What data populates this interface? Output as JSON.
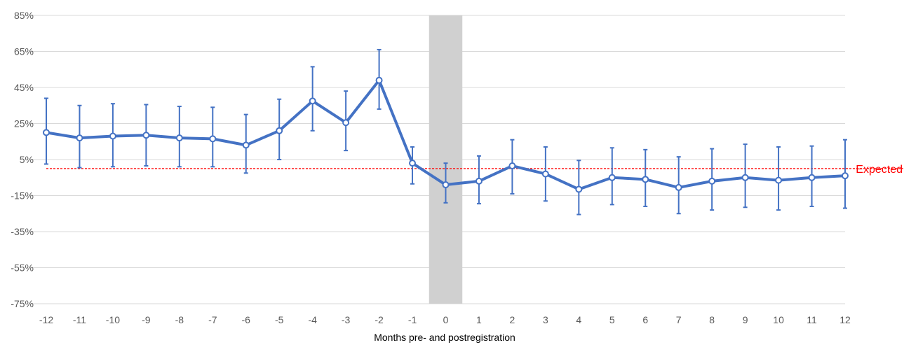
{
  "chart_data": {
    "type": "line",
    "title": "",
    "xlabel": "Months pre- and postregistration",
    "ylabel": "",
    "x": [
      -12,
      -11,
      -10,
      -9,
      -8,
      -7,
      -6,
      -5,
      -4,
      -3,
      -2,
      -1,
      0,
      1,
      2,
      3,
      4,
      5,
      6,
      7,
      8,
      9,
      10,
      11,
      12
    ],
    "x_tick_labels": [
      "-12",
      "-11",
      "-10",
      "-9",
      "-8",
      "-7",
      "-6",
      "-5",
      "-4",
      "-3",
      "-2",
      "-1",
      "0",
      "1",
      "2",
      "3",
      "4",
      "5",
      "6",
      "7",
      "8",
      "9",
      "10",
      "11",
      "12"
    ],
    "y_tick_values": [
      85,
      65,
      45,
      25,
      5,
      -15,
      -35,
      -55,
      -75
    ],
    "y_tick_labels": [
      "85%",
      "65%",
      "45%",
      "25%",
      "5%",
      "-15%",
      "-35%",
      "-55%",
      "-75%"
    ],
    "ylim": [
      -75,
      85
    ],
    "xlim": [
      -12,
      12
    ],
    "grid": true,
    "series": [
      {
        "values": [
          20,
          17,
          18,
          18.5,
          17,
          16.5,
          13,
          21,
          37.5,
          25.5,
          49,
          3,
          -9,
          -7,
          1.5,
          -3,
          -11.5,
          -5,
          -6,
          -10.5,
          -7,
          -5,
          -6.5,
          -5,
          -4
        ],
        "err_low": [
          2.5,
          0.5,
          1,
          1.5,
          1,
          1,
          -2.5,
          5,
          21,
          10,
          33,
          -8.5,
          -19,
          -19.5,
          -14,
          -18,
          -25.5,
          -20,
          -21,
          -25,
          -23,
          -21.5,
          -23,
          -21,
          -22
        ],
        "err_high": [
          39,
          35,
          36,
          35.5,
          34.5,
          34,
          30,
          38.5,
          56.5,
          43,
          66,
          12,
          3,
          7,
          16,
          12,
          4.5,
          11.5,
          10.5,
          6.5,
          11,
          13.5,
          12,
          12.5,
          16
        ],
        "color": "#4472c4"
      }
    ],
    "reference_line": {
      "y": 0,
      "label": "Expected",
      "color": "#ff0000"
    },
    "shaded_band": {
      "x_from": -0.5,
      "x_to": 0.5,
      "color": "#d0d0d0"
    }
  }
}
